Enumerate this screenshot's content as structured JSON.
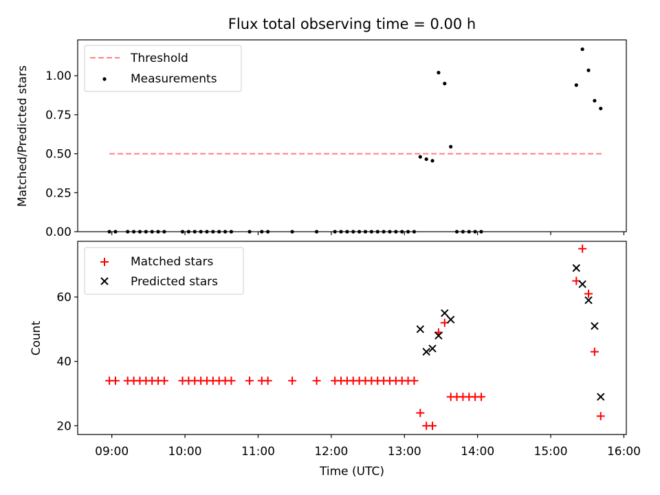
{
  "chart_data": [
    {
      "type": "scatter",
      "title": "Flux total observing time = 0.00 h",
      "ylabel": "Matched/Predicted stars",
      "xlabel": "",
      "ylim": [
        0,
        1.23
      ],
      "yticks": [
        "0.00",
        "0.25",
        "0.50",
        "0.75",
        "1.00"
      ],
      "xlim": [
        "08:32",
        "16:02"
      ],
      "grid": false,
      "legend": {
        "placement": "top-left",
        "entries": [
          "Threshold",
          "Measurements"
        ]
      },
      "threshold": {
        "name": "Threshold",
        "value": 0.5,
        "x_range": [
          "08:58",
          "15:42"
        ],
        "color": "#ff7f7f",
        "style": "dashed"
      },
      "series": [
        {
          "name": "Measurements",
          "color": "#000000",
          "marker": "dot",
          "points": [
            [
              "08:58",
              0
            ],
            [
              "09:03",
              0
            ],
            [
              "09:13",
              0
            ],
            [
              "09:18",
              0
            ],
            [
              "09:23",
              0
            ],
            [
              "09:28",
              0
            ],
            [
              "09:33",
              0
            ],
            [
              "09:38",
              0
            ],
            [
              "09:43",
              0
            ],
            [
              "09:58",
              0
            ],
            [
              "10:03",
              0
            ],
            [
              "10:08",
              0
            ],
            [
              "10:13",
              0
            ],
            [
              "10:18",
              0
            ],
            [
              "10:23",
              0
            ],
            [
              "10:28",
              0
            ],
            [
              "10:33",
              0
            ],
            [
              "10:38",
              0
            ],
            [
              "10:53",
              0
            ],
            [
              "11:03",
              0
            ],
            [
              "11:08",
              0
            ],
            [
              "11:28",
              0
            ],
            [
              "11:48",
              0
            ],
            [
              "12:03",
              0
            ],
            [
              "12:08",
              0
            ],
            [
              "12:13",
              0
            ],
            [
              "12:18",
              0
            ],
            [
              "12:23",
              0
            ],
            [
              "12:28",
              0
            ],
            [
              "12:33",
              0
            ],
            [
              "12:38",
              0
            ],
            [
              "12:43",
              0
            ],
            [
              "12:48",
              0
            ],
            [
              "12:53",
              0
            ],
            [
              "12:58",
              0
            ],
            [
              "13:03",
              0
            ],
            [
              "13:08",
              0
            ],
            [
              "13:13",
              0.48
            ],
            [
              "13:18",
              0.465
            ],
            [
              "13:23",
              0.455
            ],
            [
              "13:28",
              1.02
            ],
            [
              "13:33",
              0.95
            ],
            [
              "13:38",
              0.545
            ],
            [
              "13:43",
              0
            ],
            [
              "13:48",
              0
            ],
            [
              "13:53",
              0
            ],
            [
              "13:58",
              0
            ],
            [
              "14:03",
              0
            ],
            [
              "15:21",
              0.94
            ],
            [
              "15:26",
              1.17
            ],
            [
              "15:31",
              1.035
            ],
            [
              "15:36",
              0.84
            ],
            [
              "15:41",
              0.79
            ]
          ]
        }
      ]
    },
    {
      "type": "scatter",
      "title": "",
      "ylabel": "Count",
      "xlabel": "Time (UTC)",
      "ylim": [
        17.3,
        77.3
      ],
      "yticks": [
        "20",
        "40",
        "60"
      ],
      "xlim": [
        "08:32",
        "16:02"
      ],
      "xticks": [
        "09:00",
        "10:00",
        "11:00",
        "12:00",
        "13:00",
        "14:00",
        "15:00",
        "16:00"
      ],
      "grid": false,
      "legend": {
        "placement": "top-left",
        "entries": [
          "Matched stars",
          "Predicted stars"
        ]
      },
      "series": [
        {
          "name": "Matched stars",
          "color": "#ff0000",
          "marker": "plus",
          "points": [
            [
              "08:58",
              34
            ],
            [
              "09:03",
              34
            ],
            [
              "09:13",
              34
            ],
            [
              "09:18",
              34
            ],
            [
              "09:23",
              34
            ],
            [
              "09:28",
              34
            ],
            [
              "09:33",
              34
            ],
            [
              "09:38",
              34
            ],
            [
              "09:43",
              34
            ],
            [
              "09:58",
              34
            ],
            [
              "10:03",
              34
            ],
            [
              "10:08",
              34
            ],
            [
              "10:13",
              34
            ],
            [
              "10:18",
              34
            ],
            [
              "10:23",
              34
            ],
            [
              "10:28",
              34
            ],
            [
              "10:33",
              34
            ],
            [
              "10:38",
              34
            ],
            [
              "10:53",
              34
            ],
            [
              "11:03",
              34
            ],
            [
              "11:08",
              34
            ],
            [
              "11:28",
              34
            ],
            [
              "11:48",
              34
            ],
            [
              "12:03",
              34
            ],
            [
              "12:08",
              34
            ],
            [
              "12:13",
              34
            ],
            [
              "12:18",
              34
            ],
            [
              "12:23",
              34
            ],
            [
              "12:28",
              34
            ],
            [
              "12:33",
              34
            ],
            [
              "12:38",
              34
            ],
            [
              "12:43",
              34
            ],
            [
              "12:48",
              34
            ],
            [
              "12:53",
              34
            ],
            [
              "12:58",
              34
            ],
            [
              "13:03",
              34
            ],
            [
              "13:08",
              34
            ],
            [
              "13:13",
              24
            ],
            [
              "13:18",
              20
            ],
            [
              "13:23",
              20
            ],
            [
              "13:28",
              49
            ],
            [
              "13:33",
              52
            ],
            [
              "13:38",
              29
            ],
            [
              "13:43",
              29
            ],
            [
              "13:48",
              29
            ],
            [
              "13:53",
              29
            ],
            [
              "13:58",
              29
            ],
            [
              "14:03",
              29
            ],
            [
              "15:21",
              65
            ],
            [
              "15:26",
              75
            ],
            [
              "15:31",
              61
            ],
            [
              "15:36",
              43
            ],
            [
              "15:41",
              23
            ]
          ]
        },
        {
          "name": "Predicted stars",
          "color": "#000000",
          "marker": "cross",
          "points": [
            [
              "13:13",
              50
            ],
            [
              "13:18",
              43
            ],
            [
              "13:23",
              44
            ],
            [
              "13:28",
              48
            ],
            [
              "13:33",
              55
            ],
            [
              "13:38",
              53
            ],
            [
              "15:21",
              69
            ],
            [
              "15:26",
              64
            ],
            [
              "15:31",
              59
            ],
            [
              "15:36",
              51
            ],
            [
              "15:41",
              29
            ]
          ]
        }
      ]
    }
  ]
}
